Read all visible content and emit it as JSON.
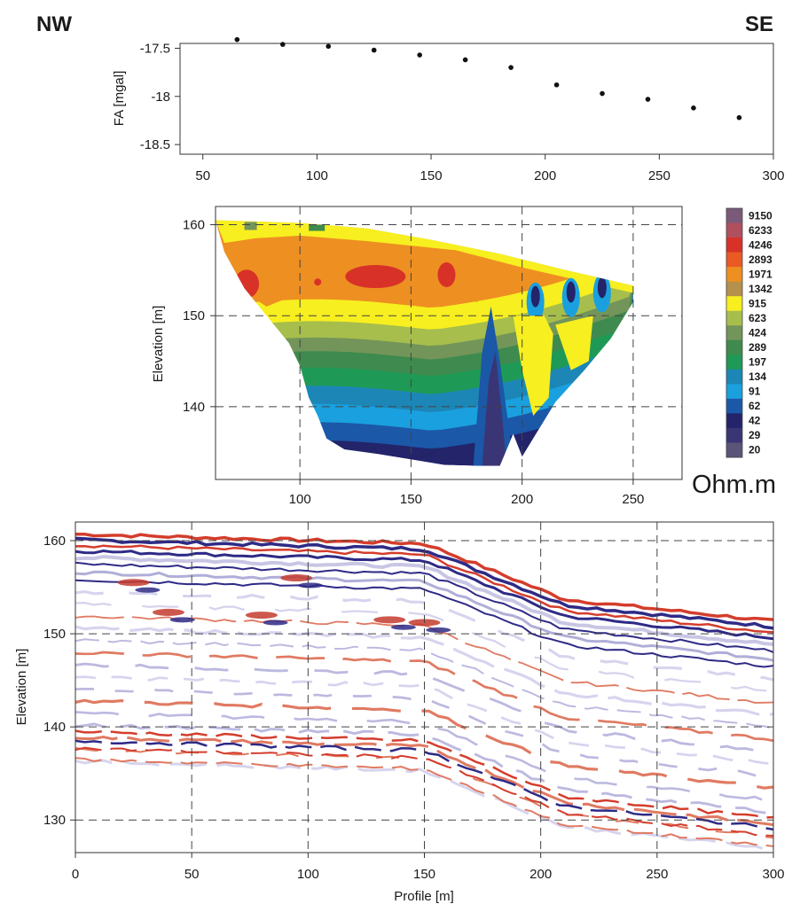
{
  "header": {
    "left": "NW",
    "right": "SE"
  },
  "chart_data": [
    {
      "type": "scatter",
      "title": "",
      "ylabel": "FA [mgal]",
      "xlabel": "",
      "xlim": [
        40,
        300
      ],
      "ylim": [
        -18.6,
        -17.45
      ],
      "xticks": [
        "50",
        "100",
        "150",
        "200",
        "250",
        "300"
      ],
      "yticks": [
        "-17.5",
        "-18",
        "-18.5"
      ],
      "x": [
        65,
        85,
        105,
        125,
        145,
        165,
        185,
        205,
        225,
        245,
        265,
        285
      ],
      "y": [
        -17.41,
        -17.46,
        -17.48,
        -17.52,
        -17.57,
        -17.62,
        -17.7,
        -17.88,
        -17.97,
        -18.03,
        -18.12,
        -18.22
      ]
    },
    {
      "type": "heatmap",
      "title": "",
      "ylabel": "Elevation [m]",
      "xlabel": "",
      "xlim": [
        62,
        272
      ],
      "ylim": [
        132,
        162
      ],
      "xticks": [
        "100",
        "150",
        "200",
        "250"
      ],
      "yticks": [
        "160",
        "150",
        "140"
      ],
      "grid": "dashed",
      "colorbar_unit": "Ohm.m",
      "colorbar_levels": [
        "9150",
        "6233",
        "4246",
        "2893",
        "1971",
        "1342",
        "915",
        "623",
        "424",
        "289",
        "197",
        "134",
        "91",
        "62",
        "42",
        "29",
        "20"
      ],
      "colorbar_colors": [
        "#7a5a78",
        "#b0505e",
        "#d83228",
        "#ea5a23",
        "#ee8f22",
        "#b5914c",
        "#f7ef1f",
        "#a7be4c",
        "#73955a",
        "#3f8a4e",
        "#1f9a56",
        "#1c86b6",
        "#1aa0de",
        "#1b58a8",
        "#23246a",
        "#3a3574",
        "#5a5478"
      ]
    },
    {
      "type": "heatmap",
      "title": "",
      "ylabel": "Elevation [m]",
      "xlabel": "Profile [m]",
      "xlim": [
        0,
        300
      ],
      "ylim": [
        126.5,
        162
      ],
      "xticks": [
        "0",
        "50",
        "100",
        "150",
        "200",
        "250",
        "300"
      ],
      "yticks": [
        "160",
        "150",
        "140",
        "130"
      ],
      "grid": "dashed"
    }
  ]
}
